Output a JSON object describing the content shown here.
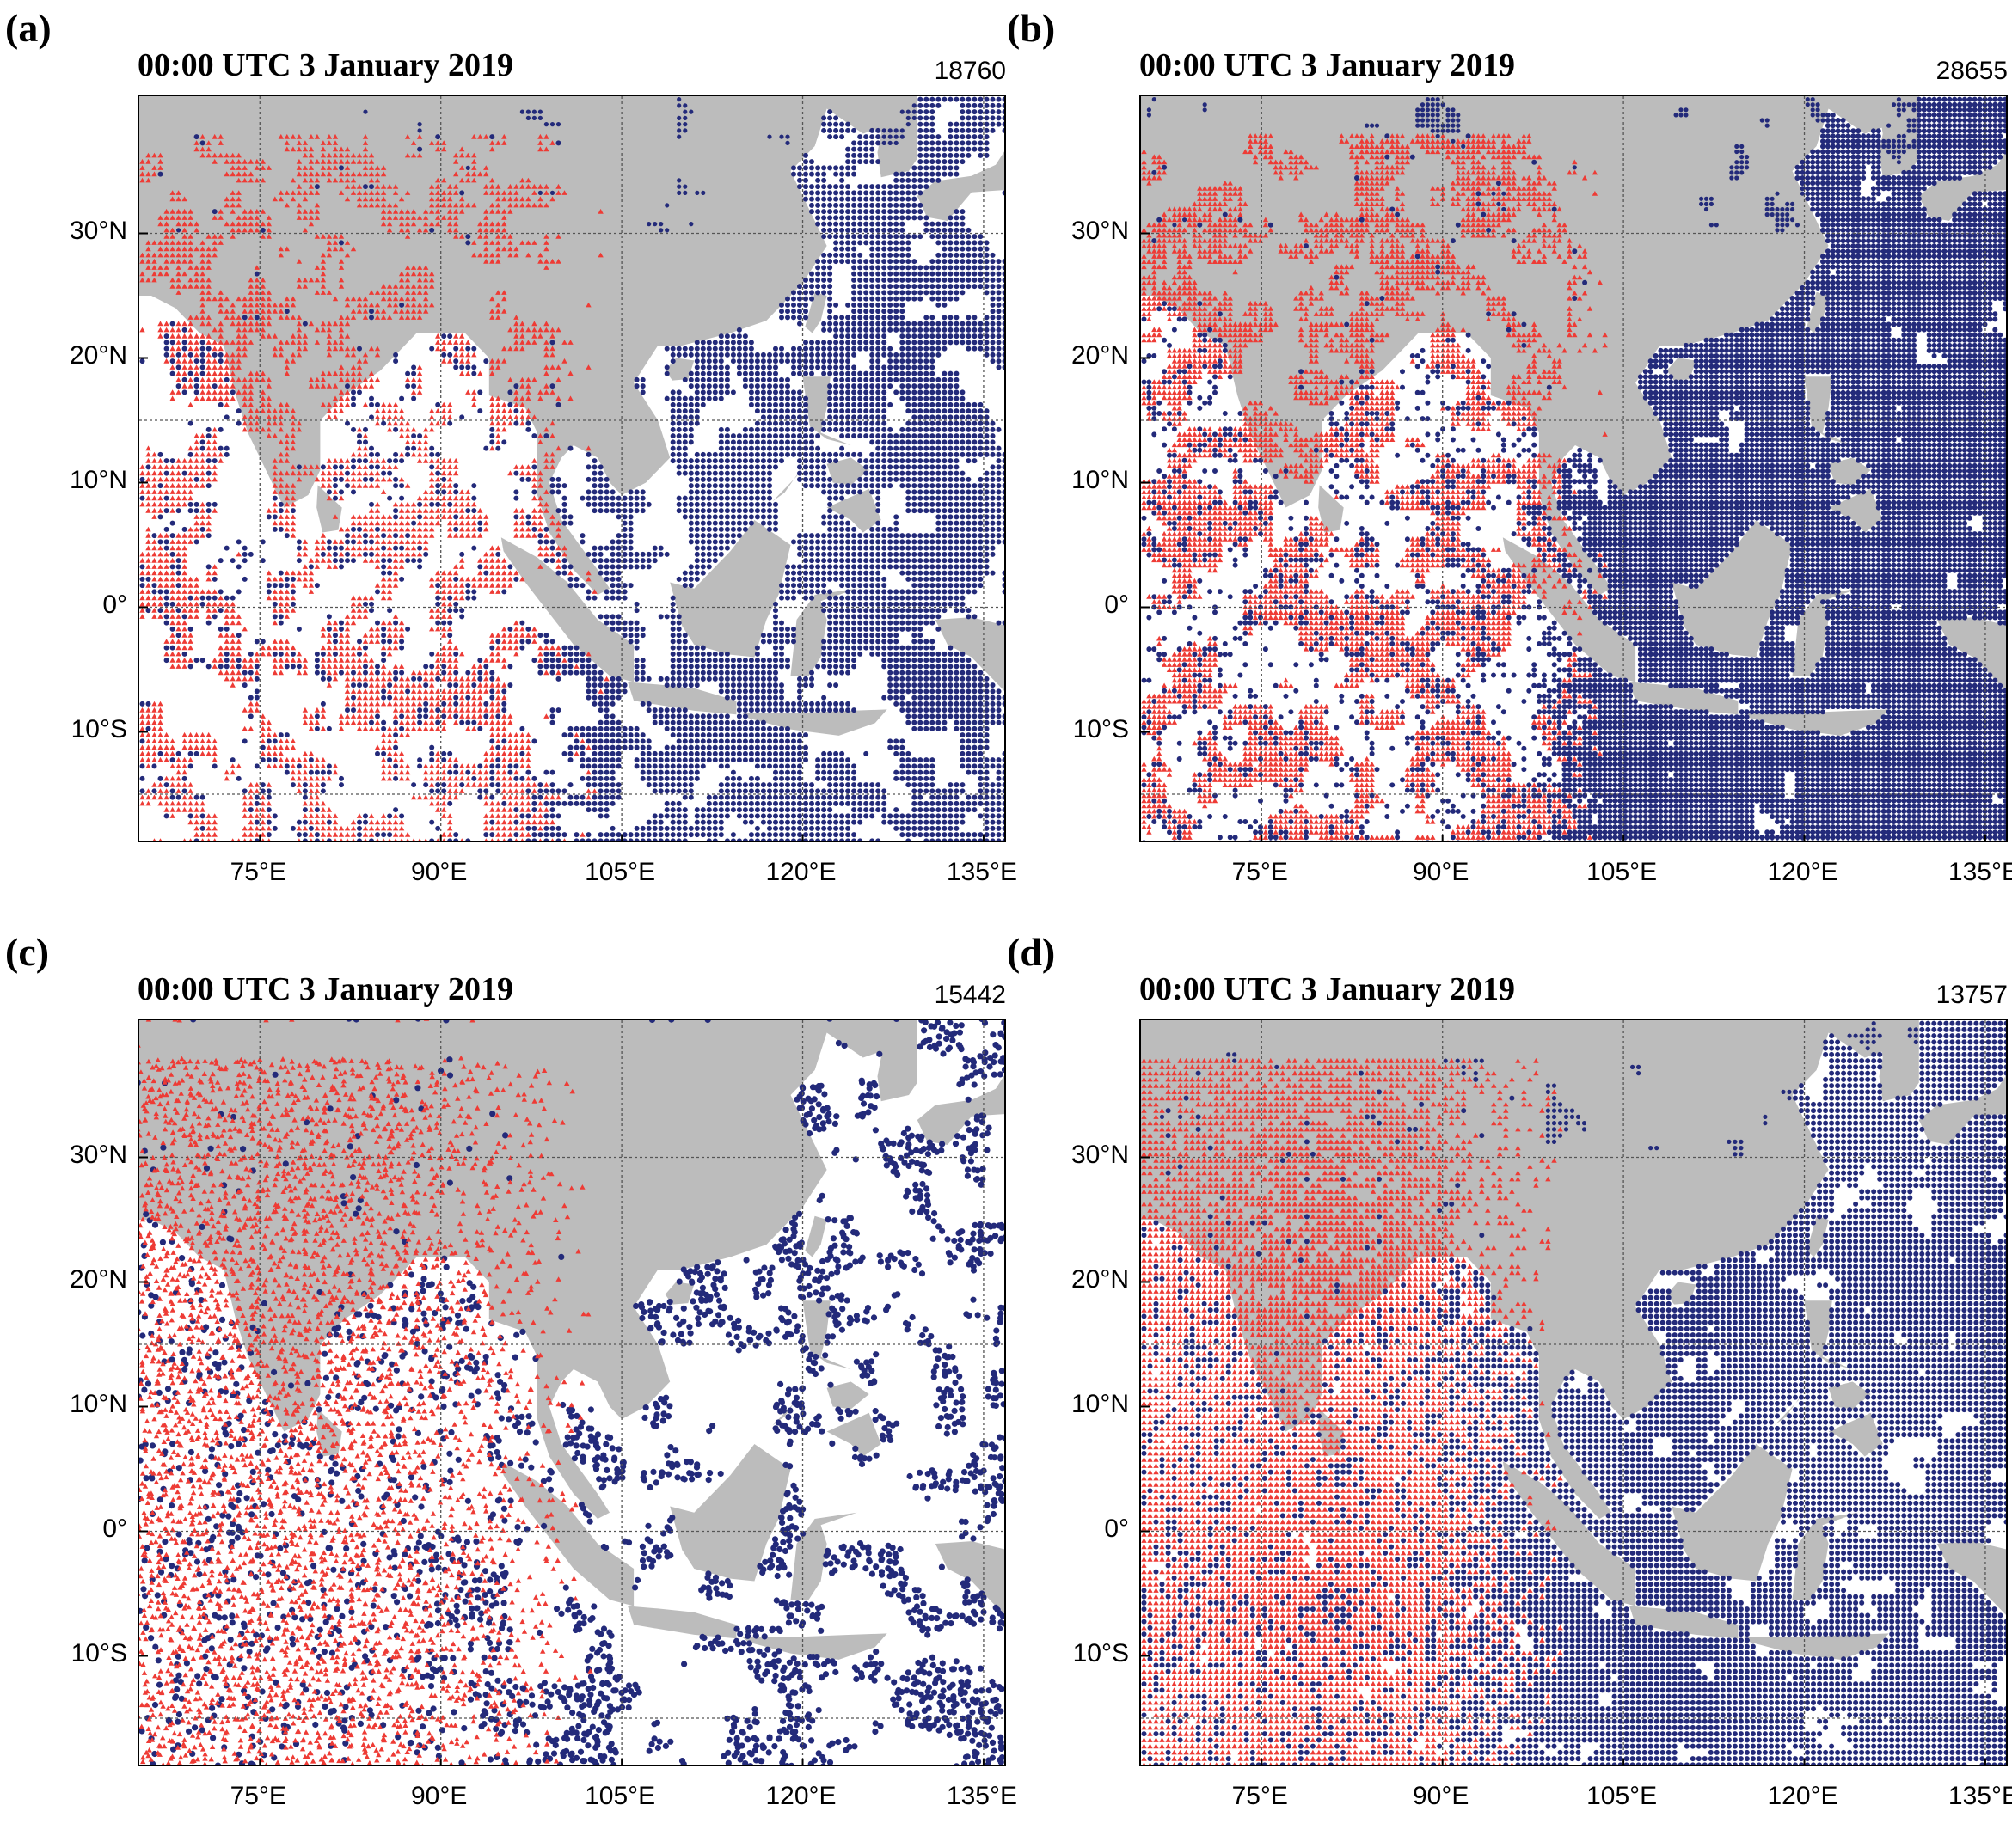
{
  "colors": {
    "land": "#bcbcbc",
    "ocean": "#ffffff",
    "cloud_obs": "#232a7a",
    "land_obs": "#ee3b35",
    "grid": "#555555",
    "frame": "#000000"
  },
  "axes": {
    "lon_range": [
      65,
      137
    ],
    "lat_range": [
      -19,
      41
    ],
    "lon_ticks": [
      75,
      90,
      105,
      120,
      135
    ],
    "lat_ticks": [
      30,
      20,
      10,
      0,
      -10
    ],
    "lon_labels": [
      "75°E",
      "90°E",
      "105°E",
      "120°E",
      "135°E"
    ],
    "lat_labels": [
      "30°N",
      "20°N",
      "10°N",
      "0°",
      "10°S"
    ],
    "grid": "dashed"
  },
  "panels": [
    {
      "letter": "(a)",
      "title": "00:00 UTC 3 January 2019",
      "count": "18760",
      "cloud_density": 0.62,
      "land_density": 0.5,
      "style": "grid-dots"
    },
    {
      "letter": "(b)",
      "title": "00:00 UTC 3 January 2019",
      "count": "28655",
      "cloud_density": 0.82,
      "land_density": 0.5,
      "style": "dense"
    },
    {
      "letter": "(c)",
      "title": "00:00 UTC 3 January 2019",
      "count": "15442",
      "cloud_density": 0.45,
      "land_density": 0.85,
      "style": "scatter"
    },
    {
      "letter": "(d)",
      "title": "00:00 UTC 3 January 2019",
      "count": "13757",
      "cloud_density": 0.72,
      "land_density": 0.85,
      "style": "swath"
    }
  ]
}
